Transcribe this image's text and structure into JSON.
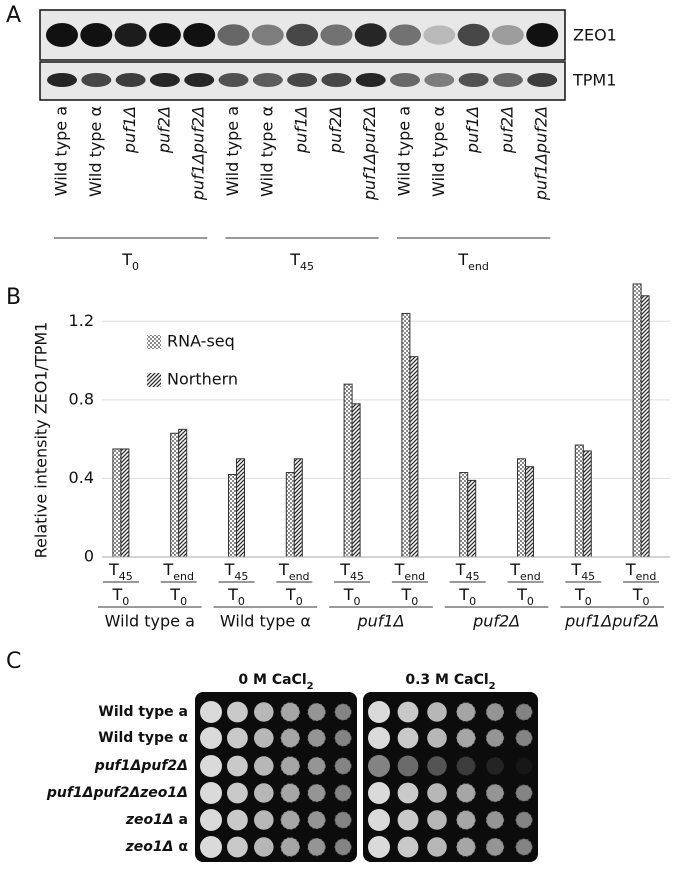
{
  "panel_a": {
    "label": "A",
    "rows": [
      "ZEO1",
      "TPM1"
    ],
    "lanes": [
      {
        "label": "Wild type a",
        "italic": false
      },
      {
        "label": "Wild type α",
        "italic": false
      },
      {
        "label": "puf1Δ",
        "italic": true
      },
      {
        "label": "puf2Δ",
        "italic": true
      },
      {
        "label": "puf1Δpuf2Δ",
        "italic": true
      },
      {
        "label": "Wild type a",
        "italic": false
      },
      {
        "label": "Wild type α",
        "italic": false
      },
      {
        "label": "puf1Δ",
        "italic": true
      },
      {
        "label": "puf2Δ",
        "italic": true
      },
      {
        "label": "puf1Δpuf2Δ",
        "italic": true
      },
      {
        "label": "Wild type a",
        "italic": false
      },
      {
        "label": "Wild type α",
        "italic": false
      },
      {
        "label": "puf1Δ",
        "italic": true
      },
      {
        "label": "puf2Δ",
        "italic": true
      },
      {
        "label": "puf1Δpuf2Δ",
        "italic": true
      }
    ],
    "groups": [
      {
        "base": "T",
        "sub": "0"
      },
      {
        "base": "T",
        "sub": "45"
      },
      {
        "base": "T",
        "sub": "end"
      }
    ]
  },
  "chart_data": {
    "type": "bar",
    "label": "B",
    "y_label": "Relative intensity ZEO1/TPM1",
    "categories": [
      {
        "num": {
          "base": "T",
          "sub": "45"
        },
        "den": {
          "base": "T",
          "sub": "0"
        }
      },
      {
        "num": {
          "base": "T",
          "sub": "end"
        },
        "den": {
          "base": "T",
          "sub": "0"
        }
      },
      {
        "num": {
          "base": "T",
          "sub": "45"
        },
        "den": {
          "base": "T",
          "sub": "0"
        }
      },
      {
        "num": {
          "base": "T",
          "sub": "end"
        },
        "den": {
          "base": "T",
          "sub": "0"
        }
      },
      {
        "num": {
          "base": "T",
          "sub": "45"
        },
        "den": {
          "base": "T",
          "sub": "0"
        }
      },
      {
        "num": {
          "base": "T",
          "sub": "end"
        },
        "den": {
          "base": "T",
          "sub": "0"
        }
      },
      {
        "num": {
          "base": "T",
          "sub": "45"
        },
        "den": {
          "base": "T",
          "sub": "0"
        }
      },
      {
        "num": {
          "base": "T",
          "sub": "end"
        },
        "den": {
          "base": "T",
          "sub": "0"
        }
      },
      {
        "num": {
          "base": "T",
          "sub": "45"
        },
        "den": {
          "base": "T",
          "sub": "0"
        }
      },
      {
        "num": {
          "base": "T",
          "sub": "end"
        },
        "den": {
          "base": "T",
          "sub": "0"
        }
      }
    ],
    "groups": [
      {
        "name": "Wild type a",
        "italic": false
      },
      {
        "name": "Wild type α",
        "italic": false
      },
      {
        "name": "puf1Δ",
        "italic": true
      },
      {
        "name": "puf2Δ",
        "italic": true
      },
      {
        "name": "puf1Δpuf2Δ",
        "italic": true
      }
    ],
    "series": [
      {
        "name": "RNA-seq",
        "pattern": "dots",
        "color": "#8a8a8a",
        "values": [
          0.55,
          0.63,
          0.42,
          0.43,
          0.88,
          1.24,
          0.43,
          0.5,
          0.57,
          1.39
        ]
      },
      {
        "name": "Northern",
        "pattern": "hatch",
        "color": "#2a2a2a",
        "values": [
          0.55,
          0.65,
          0.5,
          0.5,
          0.78,
          1.02,
          0.39,
          0.46,
          0.54,
          1.33
        ]
      }
    ],
    "ylim": [
      0,
      1.4
    ],
    "yticks": [
      0,
      0.4,
      0.8,
      1.2
    ],
    "grid": true,
    "legend": "upper-left"
  },
  "panel_c": {
    "label": "C",
    "plates": [
      {
        "base": "0 M CaCl",
        "sub": "2"
      },
      {
        "base": "0.3 M CaCl",
        "sub": "2"
      }
    ],
    "rows": [
      [
        {
          "text": "Wild type a"
        }
      ],
      [
        {
          "text": "Wild type α"
        }
      ],
      [
        {
          "text": "puf1Δpuf2Δ",
          "italic": true
        }
      ],
      [
        {
          "text": "puf1Δpuf2Δzeo1Δ",
          "italic": true
        }
      ],
      [
        {
          "text": "zeo1Δ",
          "italic": true
        },
        {
          "text": " a"
        }
      ],
      [
        {
          "text": "zeo1Δ",
          "italic": true
        },
        {
          "text": " α"
        }
      ]
    ]
  }
}
